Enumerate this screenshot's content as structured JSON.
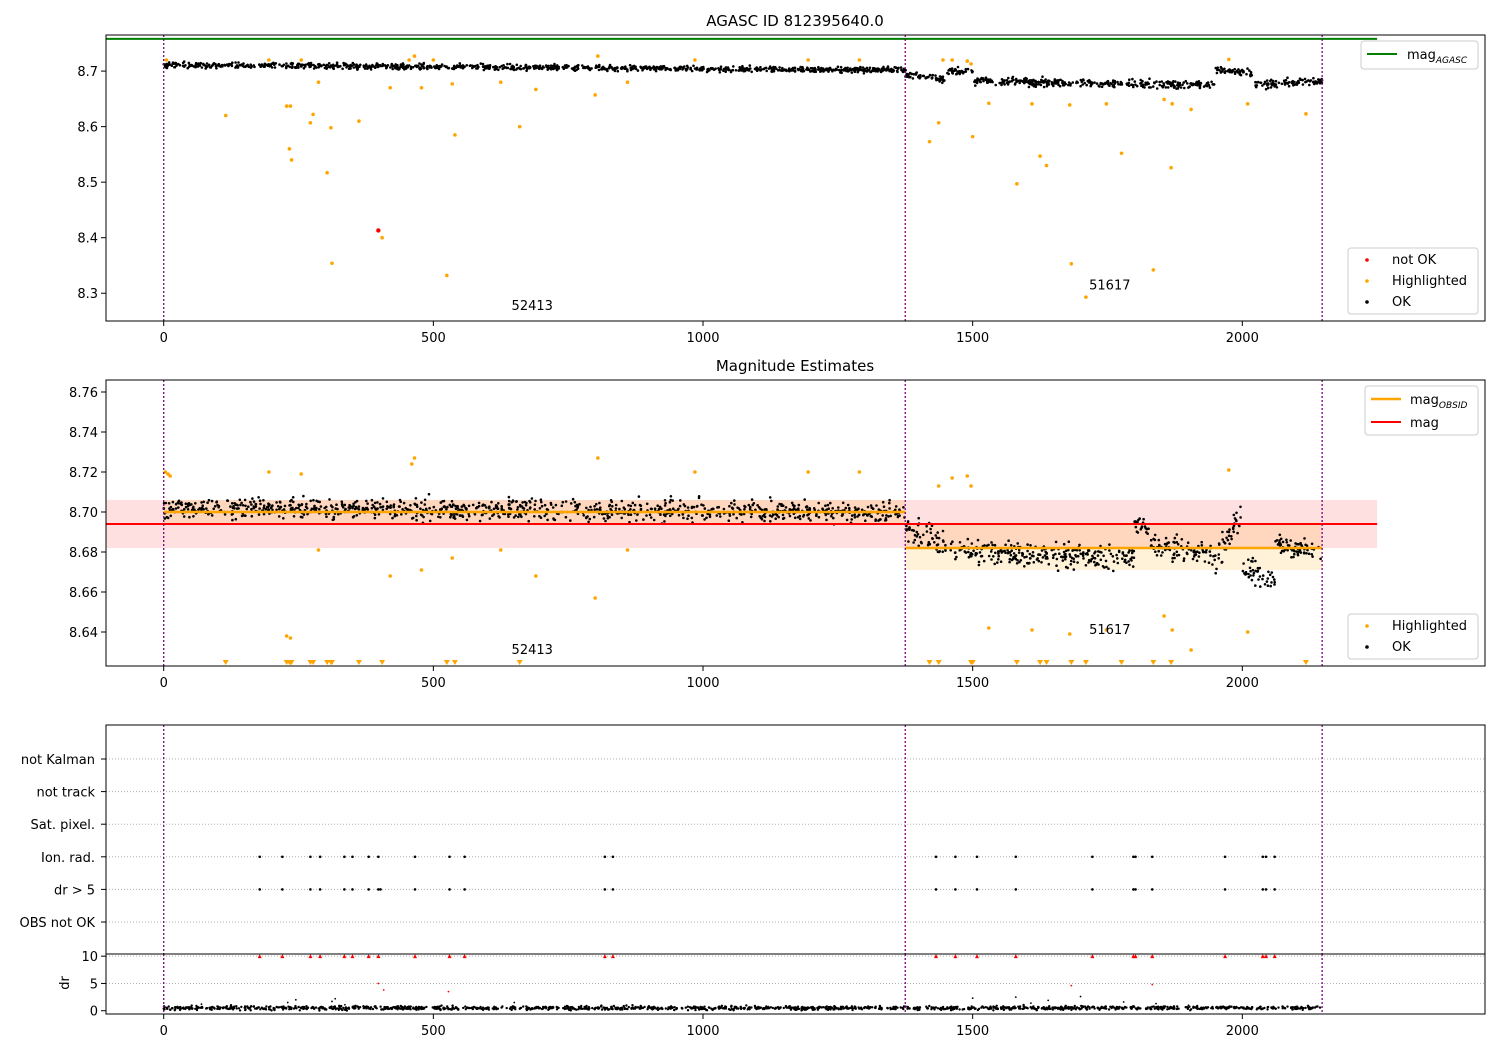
{
  "chart_data": [
    {
      "type": "scatter",
      "title": "AGASC ID 812395640.0",
      "xlim": [
        -107,
        2450
      ],
      "ylim": [
        8.25,
        8.765
      ],
      "xticks": [
        0,
        500,
        1000,
        1500,
        2000
      ],
      "yticks": [
        8.3,
        8.4,
        8.5,
        8.6,
        8.7
      ],
      "obs_boundaries": [
        0,
        1375,
        2148
      ],
      "hline": {
        "name": "AGASC",
        "value": 8.758,
        "x_range": [
          -107,
          2250
        ],
        "color": "#008000"
      },
      "annotations": [
        {
          "text": "52413",
          "x": 645,
          "y": 8.27
        },
        {
          "text": "51617",
          "x": 1716,
          "y": 8.307
        }
      ],
      "ok_series": {
        "name": "OK",
        "color": "#000000",
        "segments": [
          {
            "x_start": 0,
            "x_end": 1375,
            "y_start": 8.711,
            "y_end": 8.702,
            "spread": 0.006
          },
          {
            "x_start": 1375,
            "x_end": 1450,
            "y_start": 8.694,
            "y_end": 8.685,
            "spread": 0.008
          },
          {
            "x_start": 1450,
            "x_end": 1500,
            "y_start": 8.702,
            "y_end": 8.698,
            "spread": 0.008
          },
          {
            "x_start": 1500,
            "x_end": 1950,
            "y_start": 8.682,
            "y_end": 8.675,
            "spread": 0.008
          },
          {
            "x_start": 1950,
            "x_end": 2020,
            "y_start": 8.702,
            "y_end": 8.695,
            "spread": 0.008
          },
          {
            "x_start": 2020,
            "x_end": 2148,
            "y_start": 8.675,
            "y_end": 8.682,
            "spread": 0.008
          }
        ]
      },
      "highlighted": {
        "name": "Highlighted",
        "color": "#FFA500",
        "points": [
          [
            5,
            8.72
          ],
          [
            115,
            8.62
          ],
          [
            195,
            8.72
          ],
          [
            228,
            8.637
          ],
          [
            233,
            8.56
          ],
          [
            235,
            8.637
          ],
          [
            237,
            8.54
          ],
          [
            255,
            8.72
          ],
          [
            272,
            8.607
          ],
          [
            277,
            8.622
          ],
          [
            287,
            8.68
          ],
          [
            303,
            8.517
          ],
          [
            310,
            8.598
          ],
          [
            312,
            8.354
          ],
          [
            362,
            8.61
          ],
          [
            405,
            8.4
          ],
          [
            420,
            8.67
          ],
          [
            455,
            8.72
          ],
          [
            465,
            8.727
          ],
          [
            478,
            8.67
          ],
          [
            500,
            8.72
          ],
          [
            525,
            8.332
          ],
          [
            535,
            8.677
          ],
          [
            540,
            8.585
          ],
          [
            625,
            8.68
          ],
          [
            660,
            8.6
          ],
          [
            690,
            8.667
          ],
          [
            800,
            8.657
          ],
          [
            805,
            8.727
          ],
          [
            860,
            8.68
          ],
          [
            985,
            8.72
          ],
          [
            1195,
            8.72
          ],
          [
            1290,
            8.72
          ],
          [
            1420,
            8.573
          ],
          [
            1437,
            8.607
          ],
          [
            1445,
            8.72
          ],
          [
            1462,
            8.72
          ],
          [
            1490,
            8.718
          ],
          [
            1497,
            8.713
          ],
          [
            1500,
            8.582
          ],
          [
            1530,
            8.642
          ],
          [
            1582,
            8.497
          ],
          [
            1610,
            8.641
          ],
          [
            1625,
            8.547
          ],
          [
            1637,
            8.53
          ],
          [
            1680,
            8.639
          ],
          [
            1683,
            8.353
          ],
          [
            1710,
            8.293
          ],
          [
            1748,
            8.641
          ],
          [
            1776,
            8.552
          ],
          [
            1835,
            8.342
          ],
          [
            1855,
            8.649
          ],
          [
            1868,
            8.526
          ],
          [
            1870,
            8.641
          ],
          [
            1905,
            8.631
          ],
          [
            1975,
            8.721
          ],
          [
            2010,
            8.641
          ],
          [
            2118,
            8.623
          ]
        ]
      },
      "not_ok": {
        "name": "not OK",
        "color": "#FF0000",
        "points": [
          [
            398,
            8.413
          ]
        ]
      },
      "legend": {
        "location": "upper-right / lower-right",
        "upper": [
          "AGASC"
        ],
        "lower": [
          "not OK",
          "Highlighted",
          "OK"
        ]
      }
    },
    {
      "type": "scatter",
      "title": "Magnitude Estimates",
      "xlim": [
        -107,
        2450
      ],
      "ylim": [
        8.623,
        8.766
      ],
      "xticks": [
        0,
        500,
        1000,
        1500,
        2000
      ],
      "yticks": [
        8.64,
        8.66,
        8.68,
        8.7,
        8.72,
        8.74,
        8.76
      ],
      "obs_boundaries": [
        0,
        1375,
        2148
      ],
      "mag": {
        "name": "mag",
        "value": 8.694,
        "band": [
          8.682,
          8.706
        ],
        "x_range": [
          -107,
          2250
        ],
        "color": "#FF0000"
      },
      "mag_obsid": [
        {
          "x_start": 0,
          "x_end": 1375,
          "value": 8.7,
          "band": [
            8.694,
            8.706
          ]
        },
        {
          "x_start": 1375,
          "x_end": 2148,
          "value": 8.682,
          "band": [
            8.671,
            8.694
          ]
        }
      ],
      "mag_obsid_name": "OBSID",
      "annotations": [
        {
          "text": "52413",
          "x": 645,
          "y": 8.629
        },
        {
          "text": "51617",
          "x": 1716,
          "y": 8.639
        }
      ],
      "ok_series": {
        "name": "OK",
        "color": "#000000",
        "segments": [
          {
            "x_start": 0,
            "x_end": 1375,
            "y_start": 8.702,
            "y_end": 8.7,
            "spread": 0.006
          },
          {
            "x_start": 1375,
            "x_end": 1450,
            "y_start": 8.692,
            "y_end": 8.684,
            "spread": 0.008
          },
          {
            "x_start": 1450,
            "x_end": 1800,
            "y_start": 8.681,
            "y_end": 8.677,
            "spread": 0.007
          },
          {
            "x_start": 1800,
            "x_end": 1830,
            "y_start": 8.695,
            "y_end": 8.69,
            "spread": 0.006
          },
          {
            "x_start": 1830,
            "x_end": 1950,
            "y_start": 8.684,
            "y_end": 8.678,
            "spread": 0.007
          },
          {
            "x_start": 1950,
            "x_end": 2000,
            "y_start": 8.675,
            "y_end": 8.7,
            "spread": 0.008
          },
          {
            "x_start": 2000,
            "x_end": 2060,
            "y_start": 8.672,
            "y_end": 8.666,
            "spread": 0.007
          },
          {
            "x_start": 2060,
            "x_end": 2148,
            "y_start": 8.684,
            "y_end": 8.68,
            "spread": 0.006
          }
        ]
      },
      "highlighted": {
        "name": "Highlighted",
        "color": "#FFA500",
        "points": [
          [
            3,
            8.72
          ],
          [
            8,
            8.719
          ],
          [
            12,
            8.718
          ],
          [
            195,
            8.72
          ],
          [
            228,
            8.638
          ],
          [
            235,
            8.637
          ],
          [
            255,
            8.719
          ],
          [
            287,
            8.681
          ],
          [
            420,
            8.668
          ],
          [
            460,
            8.724
          ],
          [
            465,
            8.727
          ],
          [
            478,
            8.671
          ],
          [
            535,
            8.677
          ],
          [
            625,
            8.681
          ],
          [
            690,
            8.668
          ],
          [
            800,
            8.657
          ],
          [
            805,
            8.727
          ],
          [
            860,
            8.681
          ],
          [
            985,
            8.72
          ],
          [
            1195,
            8.72
          ],
          [
            1290,
            8.72
          ],
          [
            1437,
            8.713
          ],
          [
            1462,
            8.717
          ],
          [
            1490,
            8.718
          ],
          [
            1497,
            8.713
          ],
          [
            1530,
            8.642
          ],
          [
            1610,
            8.641
          ],
          [
            1680,
            8.639
          ],
          [
            1748,
            8.641
          ],
          [
            1855,
            8.648
          ],
          [
            1870,
            8.641
          ],
          [
            1905,
            8.631
          ],
          [
            1975,
            8.721
          ],
          [
            2010,
            8.64
          ]
        ]
      },
      "clipped_highlighted_x": [
        115,
        228,
        233,
        235,
        237,
        272,
        277,
        303,
        310,
        312,
        362,
        405,
        525,
        540,
        660,
        1420,
        1437,
        1497,
        1500,
        1582,
        1625,
        1637,
        1683,
        1710,
        1776,
        1835,
        1868,
        2118
      ],
      "legend": {
        "location": "upper-right / lower-right",
        "upper": [
          "mag_OBSID",
          "mag"
        ],
        "lower": [
          "Highlighted",
          "OK"
        ]
      }
    },
    {
      "type": "scatter",
      "title": "",
      "xlim": [
        -107,
        2450
      ],
      "xticks": [
        0,
        500,
        1000,
        1500,
        2000
      ],
      "obs_boundaries": [
        0,
        1375,
        2148
      ],
      "categories": [
        "OBS not OK",
        "dr > 5",
        "Ion. rad.",
        "Sat. pixel.",
        "not track",
        "not Kalman"
      ],
      "flags": {
        "Ion. rad.": [
          178,
          220,
          272,
          290,
          335,
          350,
          380,
          398,
          466,
          530,
          558,
          818,
          833,
          1432,
          1468,
          1508,
          1580,
          1722,
          1798,
          1802,
          1833,
          1968,
          2038,
          2044,
          2060
        ],
        "dr > 5": [
          178,
          220,
          272,
          290,
          335,
          350,
          380,
          398,
          402,
          466,
          530,
          558,
          818,
          833,
          1432,
          1468,
          1508,
          1580,
          1722,
          1798,
          1802,
          1833,
          1968,
          2038,
          2044,
          2060
        ]
      }
    },
    {
      "type": "scatter",
      "ylabel": "dr",
      "xlim": [
        -107,
        2450
      ],
      "ylim": [
        -0.6,
        10.4
      ],
      "xticks": [
        0,
        500,
        1000,
        1500,
        2000
      ],
      "yticks": [
        0,
        5,
        10
      ],
      "obs_boundaries": [
        0,
        1375,
        2148
      ],
      "baseline": {
        "x_start": 0,
        "x_end": 2148,
        "y_center": 0.5,
        "spread": 0.25
      },
      "capped_points": {
        "color": "#FF0000",
        "x": [
          178,
          220,
          272,
          290,
          335,
          350,
          380,
          398,
          466,
          530,
          558,
          818,
          833,
          1432,
          1468,
          1508,
          1580,
          1722,
          1798,
          1802,
          1833,
          1968,
          2038,
          2044,
          2060
        ],
        "y": 10
      },
      "red_points": [
        [
          398,
          5.0
        ],
        [
          408,
          3.8
        ],
        [
          528,
          3.5
        ],
        [
          1683,
          4.6
        ],
        [
          1833,
          4.8
        ]
      ],
      "scatter_points": [
        [
          70,
          1.2
        ],
        [
          230,
          1.5
        ],
        [
          245,
          2.0
        ],
        [
          312,
          1.7
        ],
        [
          318,
          2.2
        ],
        [
          336,
          1.1
        ],
        [
          650,
          1.5
        ],
        [
          1500,
          2.3
        ],
        [
          1580,
          2.5
        ],
        [
          1608,
          1.4
        ],
        [
          1640,
          1.9
        ],
        [
          1700,
          2.6
        ],
        [
          1780,
          1.6
        ],
        [
          1840,
          1.3
        ],
        [
          1900,
          1.0
        ]
      ]
    }
  ]
}
